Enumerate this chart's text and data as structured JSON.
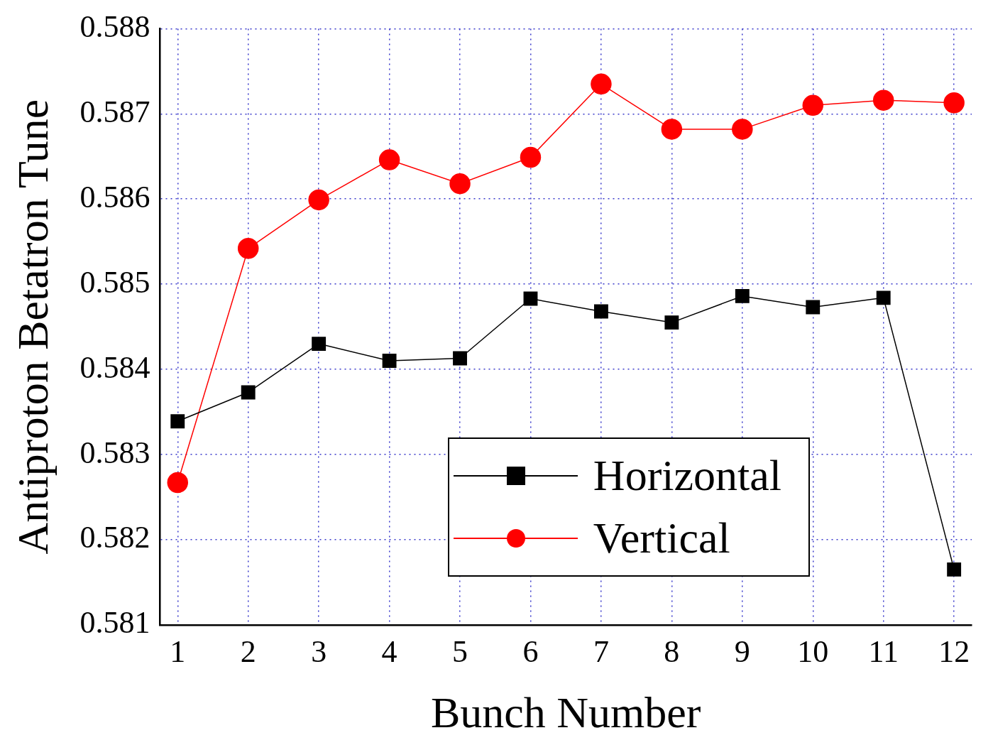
{
  "chart_data": {
    "type": "line",
    "xlabel": "Bunch Number",
    "ylabel": "Antiproton Betatron Tune",
    "x": [
      1,
      2,
      3,
      4,
      5,
      6,
      7,
      8,
      9,
      10,
      11,
      12
    ],
    "series": [
      {
        "name": "Horizontal",
        "color": "#000000",
        "marker": "square",
        "values": [
          0.58339,
          0.58373,
          0.5843,
          0.5841,
          0.58413,
          0.58483,
          0.58468,
          0.58455,
          0.58486,
          0.58473,
          0.58484,
          0.58165
        ]
      },
      {
        "name": "Vertical",
        "color": "#ff0000",
        "marker": "circle",
        "values": [
          0.58267,
          0.58542,
          0.58599,
          0.58646,
          0.58618,
          0.58649,
          0.58735,
          0.58682,
          0.58682,
          0.5871,
          0.58716,
          0.58713
        ]
      }
    ],
    "xlim": [
      0.75,
      12.25
    ],
    "xticks": [
      1,
      2,
      3,
      4,
      5,
      6,
      7,
      8,
      9,
      10,
      11,
      12
    ],
    "ylim": [
      0.581,
      0.588
    ],
    "yticks": [
      {
        "value": 0.581,
        "label": "0.581"
      },
      {
        "value": 0.582,
        "label": "0.582"
      },
      {
        "value": 0.583,
        "label": "0.583"
      },
      {
        "value": 0.584,
        "label": "0.584"
      },
      {
        "value": 0.585,
        "label": "0.585"
      },
      {
        "value": 0.586,
        "label": "0.586"
      },
      {
        "value": 0.587,
        "label": "0.587"
      },
      {
        "value": 0.588,
        "label": "0.588"
      }
    ],
    "grid": true,
    "legend": "bottom right",
    "line_style": "solid"
  }
}
